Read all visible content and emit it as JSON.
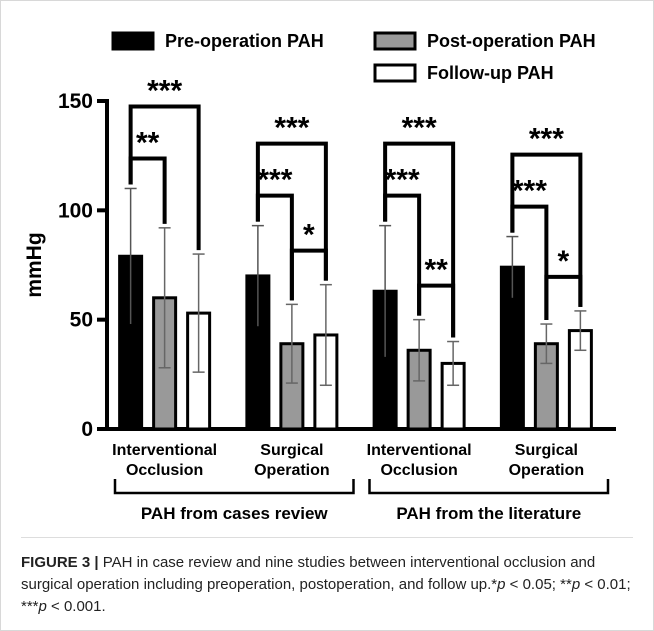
{
  "chart_data": {
    "type": "bar",
    "categories": [
      "Interventional Occlusion",
      "Surgical Operation",
      "Interventional Occlusion",
      "Surgical Operation"
    ],
    "series": [
      {
        "name": "Pre-operation PAH",
        "color": "#000000",
        "values": [
          79,
          70,
          63,
          74
        ],
        "errors": [
          31,
          23,
          30,
          14
        ]
      },
      {
        "name": "Post-operation PAH",
        "color": "#999999",
        "values": [
          60,
          39,
          36,
          39
        ],
        "errors": [
          32,
          18,
          14,
          9
        ]
      },
      {
        "name": "Follow-up PAH",
        "color": "#ffffff",
        "values": [
          53,
          43,
          30,
          45
        ],
        "errors": [
          27,
          23,
          10,
          9
        ]
      }
    ],
    "significance": [
      [
        "**",
        "***",
        null
      ],
      [
        "***",
        "***",
        "*"
      ],
      [
        "***",
        "***",
        "**"
      ],
      [
        "***",
        "***",
        "*"
      ]
    ],
    "group_labels": [
      "PAH from cases review",
      "PAH from the literature"
    ],
    "y_label": "mmHg",
    "ylim": [
      0,
      150
    ],
    "yticks": [
      0,
      50,
      100,
      150
    ]
  },
  "caption": {
    "runs": [
      {
        "text": "FIGURE 3 |",
        "style": "bold"
      },
      {
        "text": " PAH in case review and nine studies between interventional occlusion and surgical operation including preoperation, postoperation, and follow up.*",
        "style": "normal"
      },
      {
        "text": "p",
        "style": "italic"
      },
      {
        "text": " < 0.05; **",
        "style": "normal"
      },
      {
        "text": "p",
        "style": "italic"
      },
      {
        "text": " < 0.01; ***",
        "style": "normal"
      },
      {
        "text": "p",
        "style": "italic"
      },
      {
        "text": " < 0.001.",
        "style": "normal"
      }
    ]
  }
}
